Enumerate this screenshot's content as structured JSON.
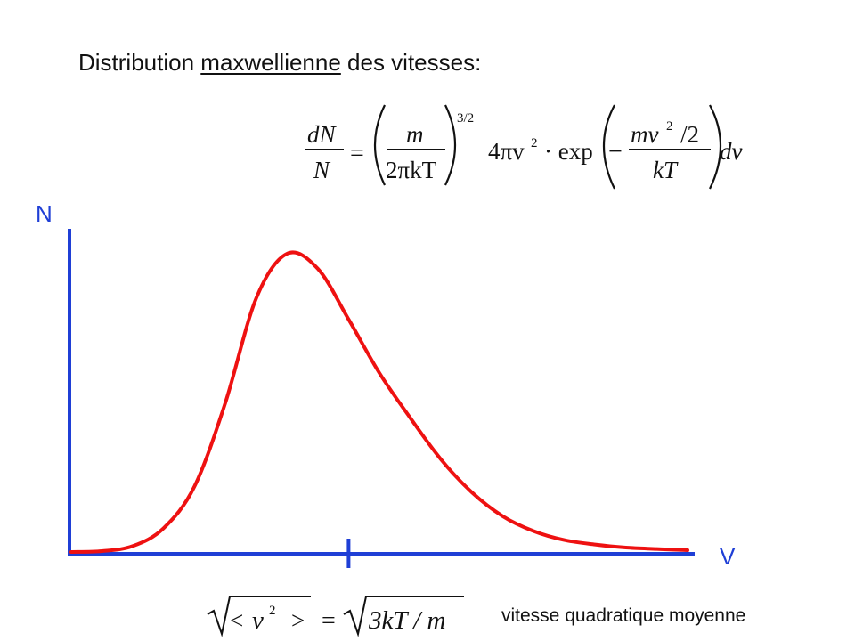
{
  "title": {
    "prefix": "Distribution ",
    "underlined": "maxwellienne",
    "suffix": " des vitesses:"
  },
  "formula": {
    "lhs_num": "dN",
    "lhs_den": "N",
    "eq": "=",
    "frac1_num": "m",
    "frac1_den": "2πkT",
    "exponent": "3/2",
    "factor": "4πv",
    "factor_exp": "2",
    "dot_exp": "· exp",
    "minus": "−",
    "frac2_num_a": "mv",
    "frac2_num_exp": "2",
    "frac2_num_b": "/2",
    "frac2_den": "kT",
    "dv": "dv"
  },
  "axes": {
    "y_label": "N",
    "x_label": "V",
    "color": "#1f3fd6"
  },
  "curve": {
    "color": "#ee1111"
  },
  "rms_formula": {
    "open": "<",
    "v": "v",
    "exp": "2",
    "close": ">",
    "eq": "=",
    "rhs": "3kT / m"
  },
  "caption": "vitesse quadratique moyenne",
  "chart_data": {
    "type": "line",
    "title": "",
    "xlabel": "V",
    "ylabel": "N",
    "grid": false,
    "legend": "none",
    "x": [
      0,
      0.05,
      0.1,
      0.15,
      0.2,
      0.25,
      0.3,
      0.35,
      0.4,
      0.45,
      0.5,
      0.55,
      0.6,
      0.65,
      0.7,
      0.75,
      0.8,
      0.85,
      0.9,
      0.95,
      1.0
    ],
    "series": [
      {
        "name": "",
        "values": [
          0,
          0.003,
          0.02,
          0.08,
          0.22,
          0.5,
          0.85,
          1.0,
          0.95,
          0.78,
          0.6,
          0.45,
          0.31,
          0.2,
          0.12,
          0.07,
          0.04,
          0.025,
          0.015,
          0.01,
          0.006
        ]
      }
    ],
    "marker_x": 0.45,
    "marker_label": "√< v² > = √3kT / m"
  }
}
